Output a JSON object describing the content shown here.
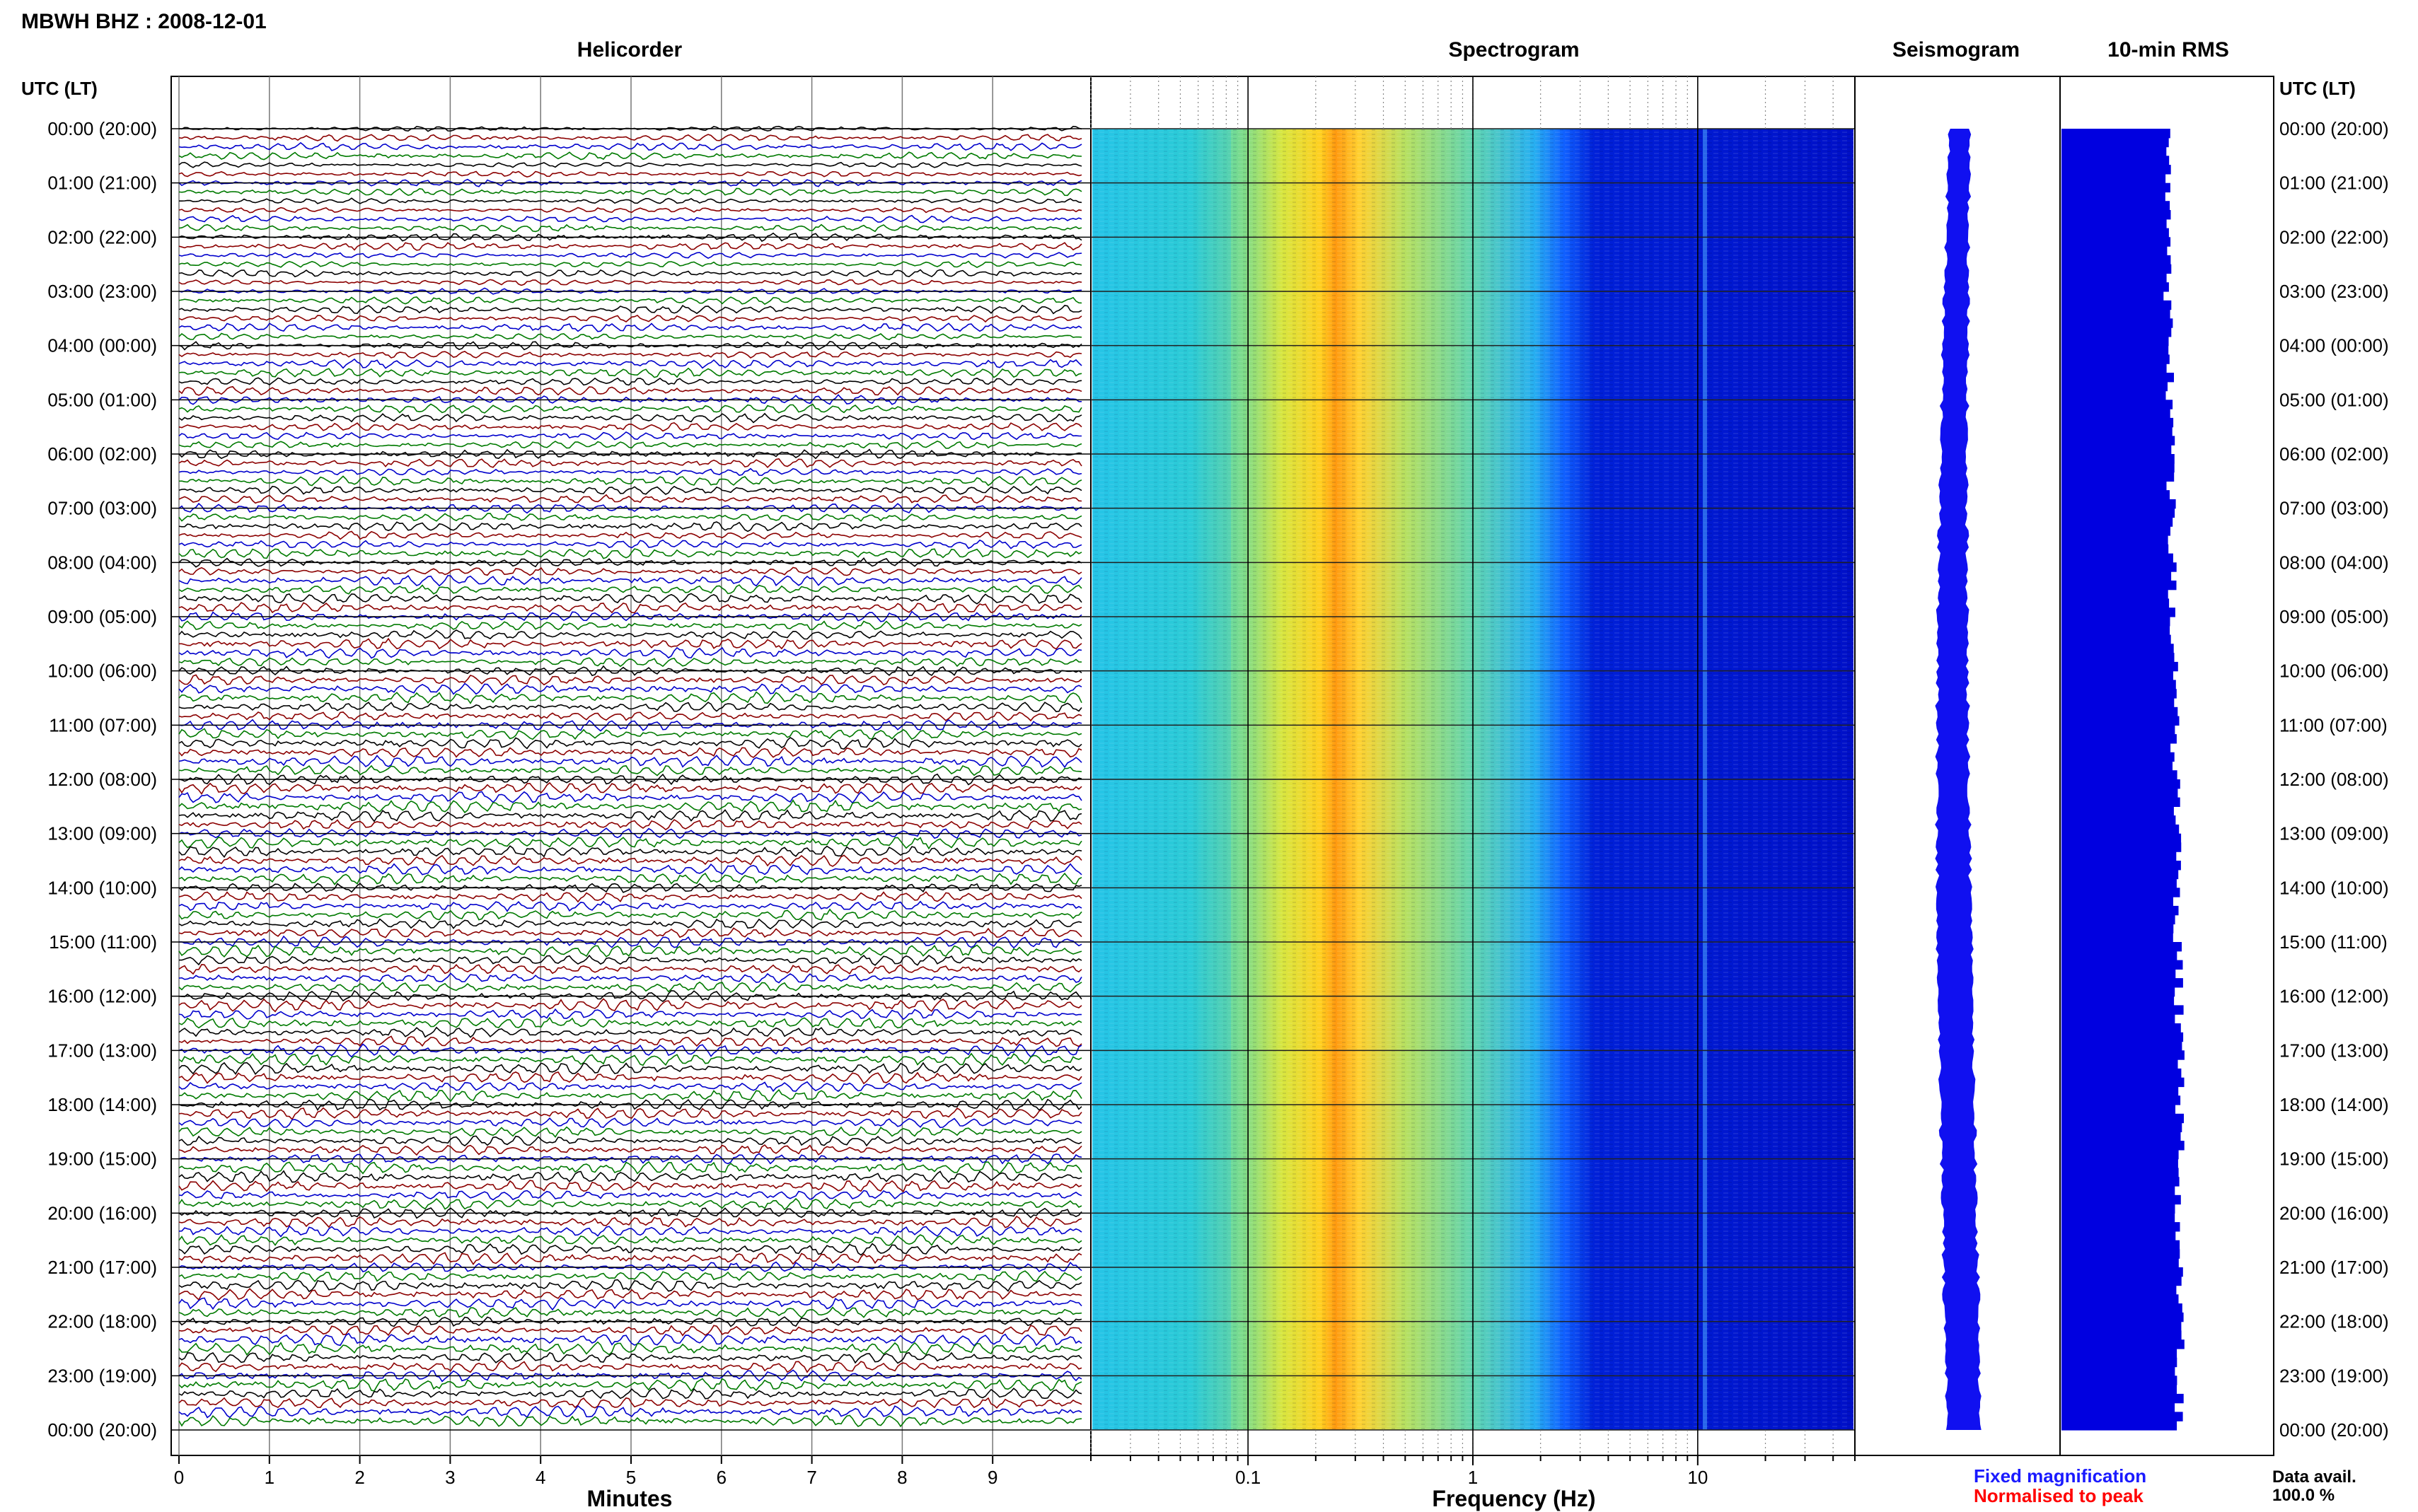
{
  "header": {
    "station_title": "MBWH BHZ : 2008-12-01",
    "utc_lt_left": "UTC (LT)",
    "utc_lt_right": "UTC (LT)"
  },
  "panels": {
    "helicorder_title": "Helicorder",
    "spectrogram_title": "Spectrogram",
    "seismogram_title": "Seismogram",
    "rms_title": "10-min RMS"
  },
  "chart_data": [
    {
      "type": "line",
      "title": "Helicorder",
      "xlabel": "Minutes",
      "ylabel": "",
      "x_ticks": [
        "0",
        "1",
        "2",
        "3",
        "4",
        "5",
        "6",
        "7",
        "8",
        "9"
      ],
      "xlim": [
        0,
        10
      ],
      "row_labels": [
        "00:00 (20:00)",
        "01:00 (21:00)",
        "02:00 (22:00)",
        "03:00 (23:00)",
        "04:00 (00:00)",
        "05:00 (01:00)",
        "06:00 (02:00)",
        "07:00 (03:00)",
        "08:00 (04:00)",
        "09:00 (05:00)",
        "10:00 (06:00)",
        "11:00 (07:00)",
        "12:00 (08:00)",
        "13:00 (09:00)",
        "14:00 (10:00)",
        "15:00 (11:00)",
        "16:00 (12:00)",
        "17:00 (13:00)",
        "18:00 (14:00)",
        "19:00 (15:00)",
        "20:00 (16:00)",
        "21:00 (17:00)",
        "22:00 (18:00)",
        "23:00 (19:00)",
        "00:00 (20:00)"
      ],
      "traces_per_hour": 6,
      "trace_colors": [
        "#000000",
        "#8b0000",
        "#0000cc",
        "#007a00"
      ],
      "grid": true
    },
    {
      "type": "heatmap",
      "title": "Spectrogram",
      "xlabel": "Frequency (Hz)",
      "x_scale": "log",
      "xlim": [
        0.02,
        50
      ],
      "x_ticks": [
        "0.1",
        "1",
        "10"
      ],
      "peak_frequency_hz": 0.28,
      "colormap": [
        "#0000cc",
        "#1060ff",
        "#19b5f0",
        "#33d2c8",
        "#8ce07a",
        "#e8e800",
        "#ffb000",
        "#ff5000"
      ],
      "grid": true
    },
    {
      "type": "line",
      "title": "Seismogram",
      "xlabel": "",
      "grid": true
    },
    {
      "type": "bar",
      "title": "10-min RMS",
      "bar_color": "#0000e0",
      "grid": true
    }
  ],
  "legend": {
    "fixed_magnification": "Fixed magnification",
    "fixed_color": "#1a1aff",
    "normalised_to_peak": "Normalised to peak",
    "normalised_color": "#ff0000"
  },
  "footer": {
    "data_avail_label": "Data avail.",
    "data_avail_value": "100.0 %"
  }
}
